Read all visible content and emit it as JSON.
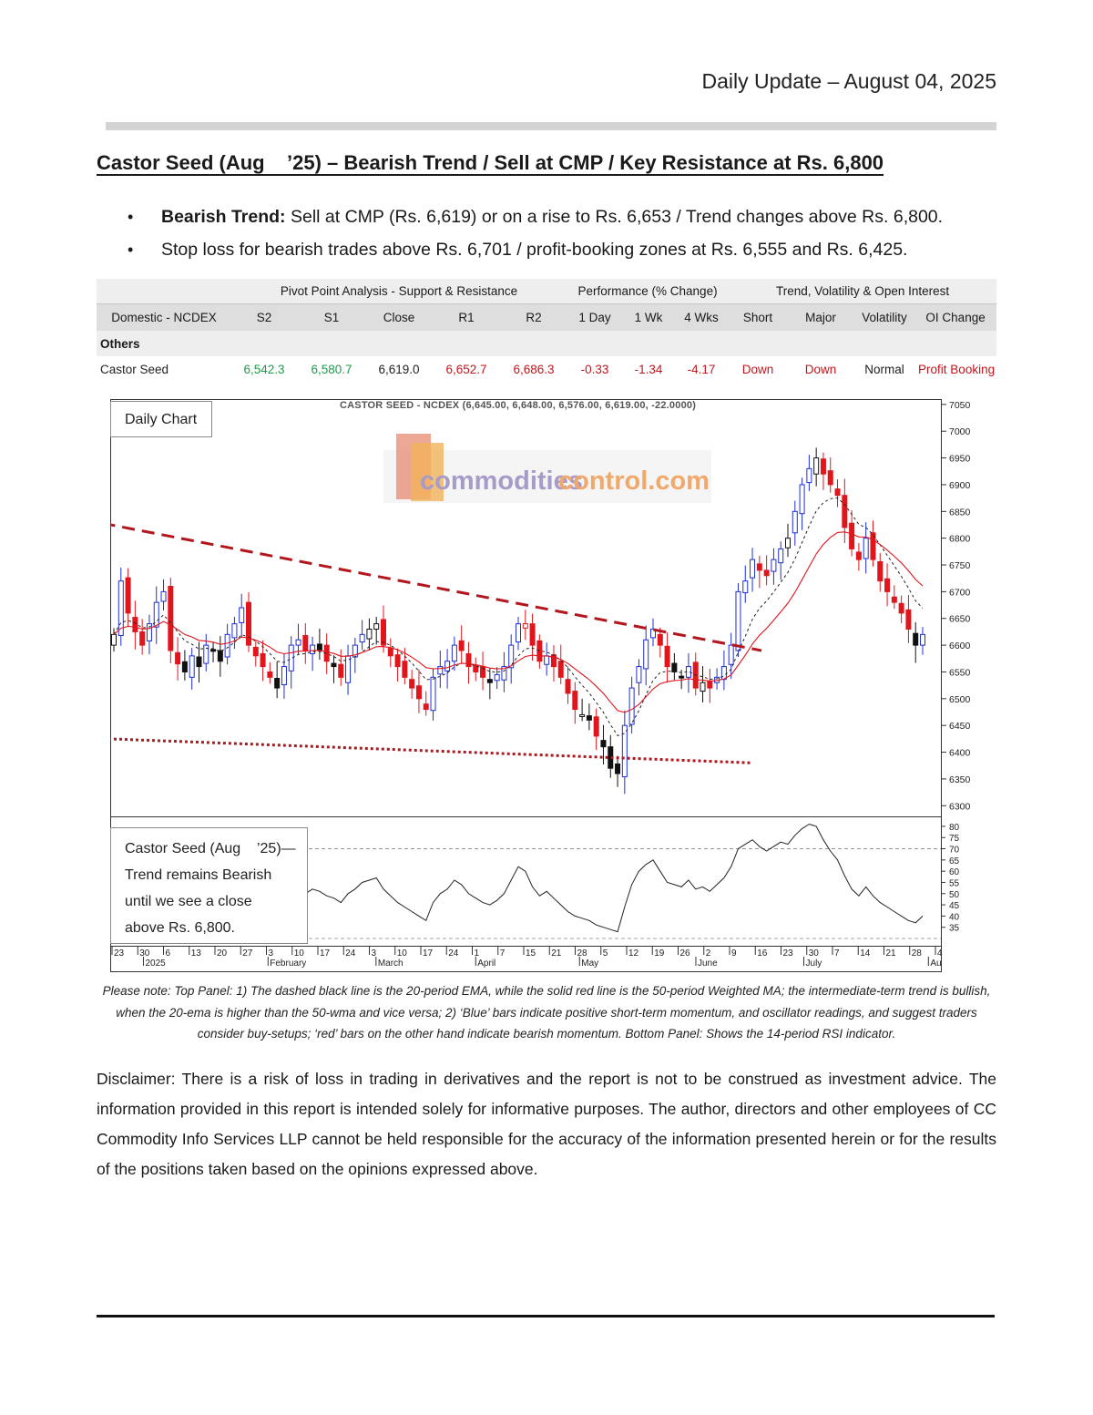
{
  "header": {
    "daily_update": "Daily Update – August 04, 2025"
  },
  "headline": "Castor Seed (Aug    ’25) – Bearish Trend / Sell at CMP / Key Resistance at Rs. 6,800",
  "bullets": [
    {
      "bold": "Bearish Trend:",
      "text": " Sell at CMP (Rs. 6,619) or on a rise to Rs. 6,653 / Trend changes above Rs. 6,800."
    },
    {
      "bold": "",
      "text": "Stop loss for bearish trades above Rs. 6,701 / profit-booking zones at Rs. 6,555 and Rs. 6,425."
    }
  ],
  "table": {
    "groups": {
      "pivot": "Pivot Point Analysis - Support & Resistance",
      "performance": "Performance (% Change)",
      "trend": "Trend, Volatility & Open Interest"
    },
    "headers": [
      "Domestic - NCDEX",
      "S2",
      "S1",
      "Close",
      "R1",
      "R2",
      "1 Day",
      "1 Wk",
      "4 Wks",
      "Short",
      "Major",
      "Volatility",
      "OI Change"
    ],
    "section": "Others",
    "row": {
      "name": "Castor Seed",
      "s2": "6,542.3",
      "s1": "6,580.7",
      "close": "6,619.0",
      "r1": "6,652.7",
      "r2": "6,686.3",
      "d1": "-0.33",
      "w1": "-1.34",
      "w4": "-4.17",
      "short": "Down",
      "major": "Down",
      "volatility": "Normal",
      "oi": "Profit Booking"
    },
    "colors": {
      "support": "#1f9b4b",
      "resistance": "#c0161c"
    }
  },
  "chart": {
    "panel_label": "Daily Chart",
    "title": "CASTOR SEED - NCDEX (6,645.00, 6,648.00, 6,576.00, 6,619.00, -22.0000)",
    "logo_text_a": "commodities",
    "logo_text_b": "control.com",
    "note": [
      "Castor Seed (Aug    ’25)—",
      "Trend remains Bearish",
      "until we see a close",
      "above Rs. 6,800."
    ],
    "price_ticks": [
      "7050",
      "7000",
      "6950",
      "6900",
      "6850",
      "6800",
      "6750",
      "6700",
      "6650",
      "6600",
      "6550",
      "6500",
      "6450",
      "6400",
      "6350",
      "6300"
    ],
    "rsi_ticks": [
      "80",
      "75",
      "70",
      "65",
      "60",
      "55",
      "50",
      "45",
      "40",
      "35"
    ],
    "date_ticks": [
      "23",
      "30",
      "6",
      "13",
      "20",
      "27",
      "3",
      "10",
      "17",
      "24",
      "3",
      "10",
      "17",
      "24",
      "1",
      "7",
      "15",
      "21",
      "28",
      "5",
      "12",
      "19",
      "26",
      "2",
      "9",
      "16",
      "23",
      "30",
      "7",
      "14",
      "21",
      "28",
      "4"
    ],
    "month_labels": [
      "2025",
      "February",
      "March",
      "April",
      "May",
      "June",
      "July",
      "Au"
    ]
  },
  "chart_data": {
    "type": "candlestick",
    "title": "CASTOR SEED - NCDEX (6,645.00, 6,648.00, 6,576.00, 6,619.00, -22.0000)",
    "price_range": [
      6280,
      7060
    ],
    "rsi_range": [
      30,
      82
    ],
    "rsi_levels": [
      30,
      70
    ],
    "last_bar": {
      "open": 6645.0,
      "high": 6648.0,
      "low": 6576.0,
      "close": 6619.0,
      "change": -22.0
    },
    "key_levels": {
      "resistance": 6800,
      "cmp": 6619,
      "stop_loss": 6701
    },
    "close_series": [
      6620,
      6720,
      6660,
      6625,
      6600,
      6640,
      6680,
      6700,
      6590,
      6565,
      6550,
      6580,
      6560,
      6600,
      6590,
      6570,
      6620,
      6640,
      6670,
      6600,
      6580,
      6560,
      6540,
      6520,
      6560,
      6600,
      6610,
      6590,
      6600,
      6590,
      6570,
      6560,
      6540,
      6580,
      6600,
      6620,
      6630,
      6640,
      6600,
      6580,
      6560,
      6540,
      6520,
      6500,
      6480,
      6540,
      6560,
      6570,
      6600,
      6590,
      6560,
      6550,
      6540,
      6530,
      6545,
      6560,
      6600,
      6640,
      6640,
      6600,
      6570,
      6580,
      6560,
      6540,
      6510,
      6480,
      6470,
      6460,
      6430,
      6410,
      6370,
      6360,
      6450,
      6520,
      6560,
      6610,
      6630,
      6600,
      6560,
      6550,
      6540,
      6560,
      6520,
      6530,
      6520,
      6540,
      6560,
      6600,
      6700,
      6720,
      6760,
      6740,
      6730,
      6760,
      6780,
      6800,
      6850,
      6900,
      6930,
      6950,
      6920,
      6900,
      6880,
      6820,
      6780,
      6760,
      6800,
      6760,
      6720,
      6700,
      6680,
      6660,
      6630,
      6600,
      6620
    ],
    "rsi_series": [
      48,
      52,
      50,
      46,
      44,
      50,
      54,
      56,
      50,
      46,
      45,
      48,
      47,
      52,
      51,
      50,
      56,
      58,
      60,
      52,
      49,
      47,
      45,
      44,
      48,
      51,
      53,
      50,
      52,
      51,
      49,
      48,
      46,
      50,
      52,
      55,
      56,
      57,
      52,
      49,
      46,
      44,
      42,
      40,
      38,
      46,
      50,
      52,
      56,
      54,
      50,
      48,
      46,
      45,
      47,
      50,
      56,
      62,
      60,
      53,
      49,
      51,
      48,
      45,
      42,
      40,
      39,
      38,
      36,
      35,
      34,
      33,
      44,
      54,
      60,
      63,
      65,
      60,
      55,
      54,
      53,
      56,
      52,
      53,
      51,
      54,
      57,
      62,
      70,
      72,
      74,
      71,
      69,
      71,
      73,
      72,
      76,
      79,
      81,
      80,
      74,
      69,
      65,
      58,
      52,
      49,
      53,
      49,
      46,
      44,
      42,
      40,
      38,
      37,
      40
    ]
  }
}
